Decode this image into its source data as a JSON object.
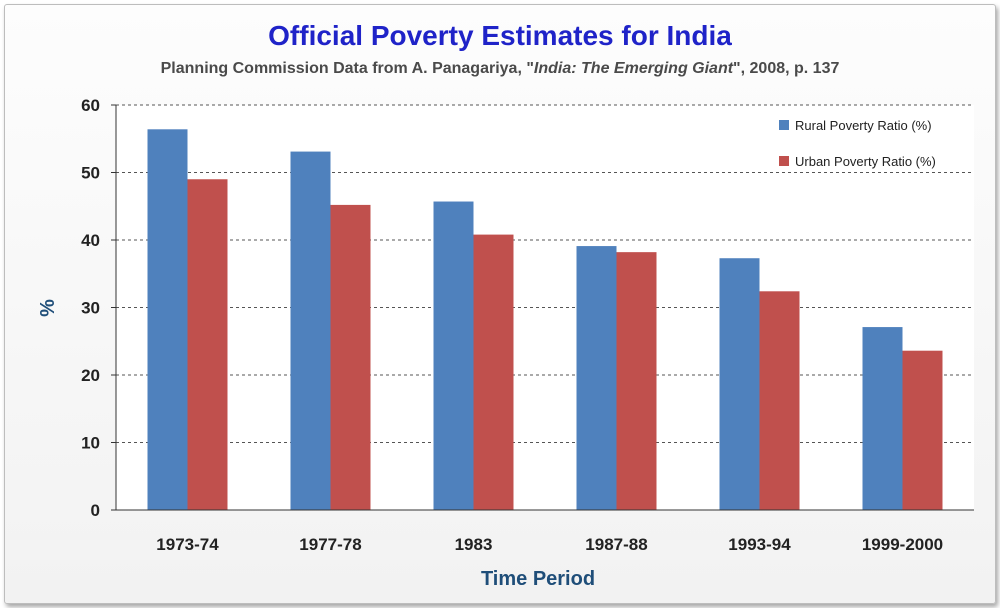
{
  "chart_data": {
    "type": "bar",
    "title": "Official Poverty Estimates for India",
    "subtitle": {
      "prefix": "Planning Commission Data from A. Panagariya, \"",
      "book": "India: The Emerging Giant",
      "suffix": "\", 2008, p. 137"
    },
    "xlabel": "Time Period",
    "ylabel": "%",
    "ylim": [
      0,
      60
    ],
    "yticks": [
      0,
      10,
      20,
      30,
      40,
      50,
      60
    ],
    "grid": true,
    "legend_position": "top-right",
    "categories": [
      "1973-74",
      "1977-78",
      "1983",
      "1987-88",
      "1993-94",
      "1999-2000"
    ],
    "series": [
      {
        "name": "Rural Poverty Ratio (%)",
        "color": "#4f81bd",
        "values": [
          56.4,
          53.1,
          45.7,
          39.1,
          37.3,
          27.1
        ]
      },
      {
        "name": "Urban Poverty Ratio (%)",
        "color": "#c0504d",
        "values": [
          49.0,
          45.2,
          40.8,
          38.2,
          32.4,
          23.6
        ]
      }
    ]
  }
}
